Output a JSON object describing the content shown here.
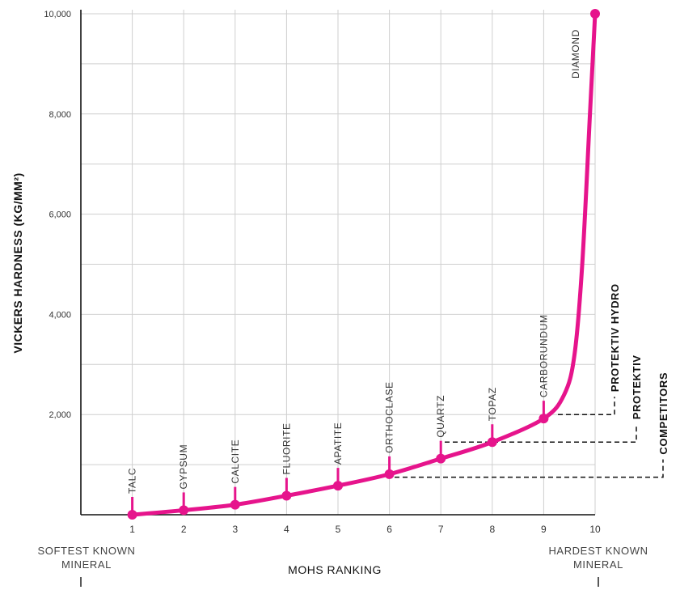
{
  "chart_data": {
    "type": "line",
    "xlabel": "MOHS RANKING",
    "ylabel": "VICKERS HARDNESS (KG/MM²)",
    "xlim": [
      0,
      10
    ],
    "ylim": [
      0,
      10000
    ],
    "grid": true,
    "x_ticks": [
      "1",
      "2",
      "3",
      "4",
      "5",
      "6",
      "7",
      "8",
      "9",
      "10"
    ],
    "y_ticks": [
      {
        "value": 2000,
        "label": "2,000"
      },
      {
        "value": 4000,
        "label": "4,000"
      },
      {
        "value": 6000,
        "label": "6,000"
      },
      {
        "value": 8000,
        "label": "8,000"
      },
      {
        "value": 10000,
        "label": "10,000"
      }
    ],
    "color": "#e6148c",
    "points": [
      {
        "x": 1,
        "y": 0,
        "label": "TALC"
      },
      {
        "x": 2,
        "y": 90,
        "label": "GYPSUM"
      },
      {
        "x": 3,
        "y": 200,
        "label": "CALCITE"
      },
      {
        "x": 4,
        "y": 380,
        "label": "FLUORITE"
      },
      {
        "x": 5,
        "y": 580,
        "label": "APATITE"
      },
      {
        "x": 6,
        "y": 810,
        "label": "ORTHOCLASE"
      },
      {
        "x": 7,
        "y": 1120,
        "label": "QUARTZ"
      },
      {
        "x": 8,
        "y": 1450,
        "label": "TOPAZ"
      },
      {
        "x": 9,
        "y": 1920,
        "label": "CARBORUNDUM"
      },
      {
        "x": 10,
        "y": 10000,
        "label": "DIAMOND"
      }
    ],
    "curve_extra": [
      {
        "x": 9.4,
        "y": 2400
      },
      {
        "x": 9.6,
        "y": 3200
      },
      {
        "x": 9.75,
        "y": 5000
      },
      {
        "x": 9.9,
        "y": 8000
      }
    ],
    "products": [
      {
        "name": "PROTEKTIV HYDRO",
        "y": 2000
      },
      {
        "name": "PROTEKTIV",
        "y": 1450
      },
      {
        "name": "COMPETITORS",
        "y": 750
      }
    ],
    "left_end_label": [
      "SOFTEST KNOWN",
      "MINERAL"
    ],
    "right_end_label": [
      "HARDEST KNOWN",
      "MINERAL"
    ]
  }
}
